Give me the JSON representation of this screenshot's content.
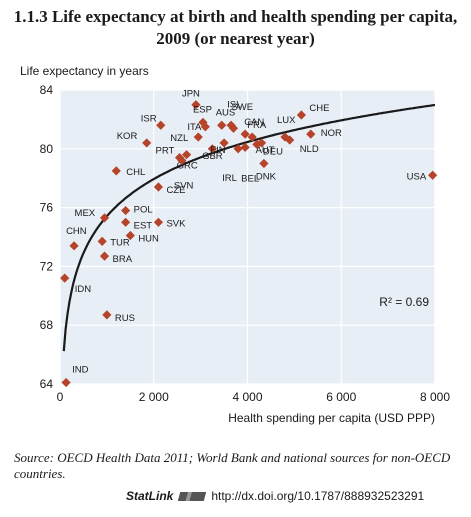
{
  "title": "1.1.3  Life expectancy at birth and health spending per capita, 2009 (or nearest year)",
  "source_note": "Source: OECD Health Data 2011; World Bank and national sources for non-OECD countries.",
  "statlink": {
    "brand": "StatLink",
    "url": "http://dx.doi.org/10.1787/888932523291"
  },
  "chart_data": {
    "type": "scatter",
    "ylabel": "Life expectancy in years",
    "xlabel": "Health spending per capita (USD PPP)",
    "xlim": [
      0,
      8000
    ],
    "ylim": [
      64,
      84
    ],
    "x_ticks": [
      "0",
      "2 000",
      "4 000",
      "6 000",
      "8 000"
    ],
    "y_ticks": [
      "64",
      "68",
      "72",
      "76",
      "80",
      "84"
    ],
    "annotation": "R² = 0.69",
    "trend": {
      "type": "logarithmic"
    },
    "marker_color": "#b5442a",
    "points": [
      {
        "label": "JPN",
        "x": 2900,
        "y": 83.0
      },
      {
        "label": "AUS",
        "x": 3450,
        "y": 81.6
      },
      {
        "label": "ISL",
        "x": 3650,
        "y": 81.6
      },
      {
        "label": "ESP",
        "x": 3050,
        "y": 81.8
      },
      {
        "label": "SWE",
        "x": 3700,
        "y": 81.4
      },
      {
        "label": "ITA",
        "x": 3100,
        "y": 81.5
      },
      {
        "label": "CAN",
        "x": 4100,
        "y": 80.8
      },
      {
        "label": "FRA",
        "x": 3950,
        "y": 81.0
      },
      {
        "label": "ISR",
        "x": 2150,
        "y": 81.6
      },
      {
        "label": "CHE",
        "x": 5150,
        "y": 82.3
      },
      {
        "label": "LUX",
        "x": 4800,
        "y": 80.8
      },
      {
        "label": "NOR",
        "x": 5350,
        "y": 81.0
      },
      {
        "label": "NZL",
        "x": 2950,
        "y": 80.8
      },
      {
        "label": "KOR",
        "x": 1850,
        "y": 80.4
      },
      {
        "label": "AUT",
        "x": 4300,
        "y": 80.4
      },
      {
        "label": "NLD",
        "x": 4900,
        "y": 80.6
      },
      {
        "label": "FIN",
        "x": 3250,
        "y": 80.0
      },
      {
        "label": "GBR",
        "x": 3500,
        "y": 80.4
      },
      {
        "label": "DEU",
        "x": 4200,
        "y": 80.3
      },
      {
        "label": "IRL",
        "x": 3800,
        "y": 80.0
      },
      {
        "label": "BEL",
        "x": 3950,
        "y": 80.1
      },
      {
        "label": "PRT",
        "x": 2550,
        "y": 79.4
      },
      {
        "label": "GRC",
        "x": 2700,
        "y": 79.6
      },
      {
        "label": "SVN",
        "x": 2600,
        "y": 79.2
      },
      {
        "label": "DNK",
        "x": 4350,
        "y": 79.0
      },
      {
        "label": "USA",
        "x": 7950,
        "y": 78.2
      },
      {
        "label": "CHL",
        "x": 1200,
        "y": 78.5
      },
      {
        "label": "CZE",
        "x": 2100,
        "y": 77.4
      },
      {
        "label": "POL",
        "x": 1400,
        "y": 75.8
      },
      {
        "label": "MEX",
        "x": 950,
        "y": 75.3
      },
      {
        "label": "EST",
        "x": 1400,
        "y": 75.0
      },
      {
        "label": "SVK",
        "x": 2100,
        "y": 75.0
      },
      {
        "label": "CHN",
        "x": 300,
        "y": 73.4
      },
      {
        "label": "TUR",
        "x": 900,
        "y": 73.7
      },
      {
        "label": "HUN",
        "x": 1500,
        "y": 74.1
      },
      {
        "label": "BRA",
        "x": 950,
        "y": 72.7
      },
      {
        "label": "IDN",
        "x": 100,
        "y": 71.2
      },
      {
        "label": "RUS",
        "x": 1000,
        "y": 68.7
      },
      {
        "label": "IND",
        "x": 130,
        "y": 64.1
      }
    ]
  }
}
